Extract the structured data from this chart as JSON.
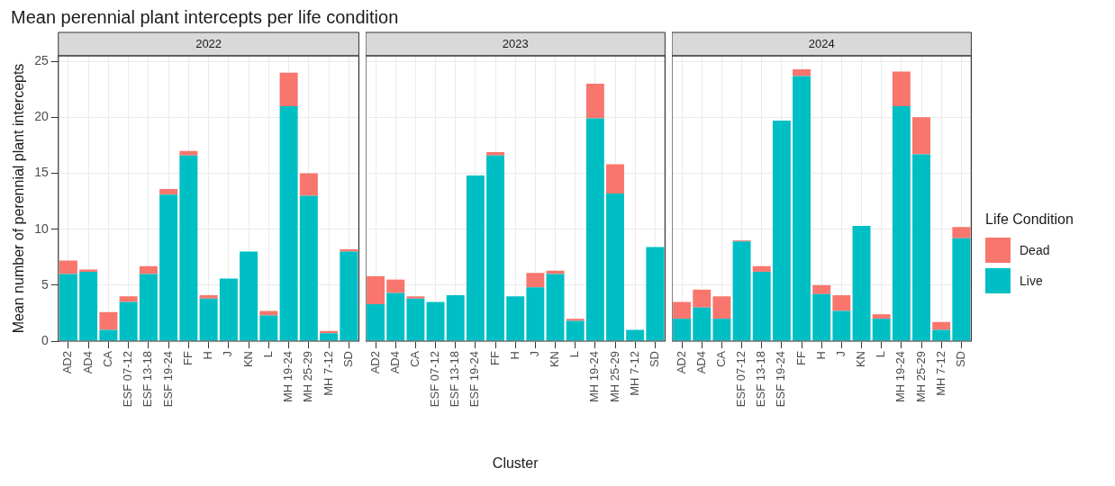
{
  "chart_data": [
    {
      "type": "bar",
      "title": "Mean perennial plant intercepts per life condition",
      "subtitle": "2022",
      "ylabel": "Mean number of perennial plant intercepts",
      "stacked": true,
      "grid": true,
      "categories": [
        "AD2",
        "AD4",
        "CA",
        "ESF 07-12",
        "ESF 13-18",
        "ESF 19-24",
        "FF",
        "H",
        "J",
        "KN",
        "L",
        "MH 19-24",
        "MH 25-29",
        "MH 7-12",
        "SD"
      ],
      "series": [
        {
          "color": "#00bfc4",
          "values": [
            6.0,
            6.2,
            1.0,
            3.5,
            6.0,
            13.1,
            16.6,
            3.8,
            5.6,
            8.0,
            2.3,
            21.0,
            13.0,
            0.7,
            8.0
          ]
        },
        {
          "color": "#f8766d",
          "values": [
            1.2,
            0.2,
            1.6,
            0.5,
            0.7,
            0.5,
            0.4,
            0.3,
            0,
            0,
            0.4,
            3.0,
            2.0,
            0.2,
            0.2
          ]
        }
      ],
      "ylim": [
        0,
        25.5
      ],
      "yticks": [
        0,
        5,
        10,
        15,
        20,
        25
      ]
    },
    {
      "type": "bar",
      "subtitle": "2023",
      "xlabel": "Cluster",
      "stacked": true,
      "grid": true,
      "tick_labels": "x",
      "categories": [
        "AD2",
        "AD4",
        "CA",
        "ESF 07-12",
        "ESF 13-18",
        "ESF 19-24",
        "FF",
        "H",
        "J",
        "KN",
        "L",
        "MH 19-24",
        "MH 25-29",
        "MH 7-12",
        "SD"
      ],
      "series": [
        {
          "color": "#00bfc4",
          "values": [
            3.3,
            4.3,
            3.8,
            3.5,
            4.1,
            14.8,
            16.6,
            4.0,
            4.8,
            6.0,
            1.8,
            19.9,
            13.2,
            1.0,
            8.4
          ]
        },
        {
          "color": "#f8766d",
          "values": [
            2.5,
            1.2,
            0.2,
            0,
            0,
            0,
            0.3,
            0,
            1.3,
            0.3,
            0.2,
            3.1,
            2.6,
            0,
            0
          ]
        }
      ],
      "ylim": [
        0,
        25.5
      ],
      "yticks": [
        0,
        5,
        10,
        15,
        20,
        25
      ]
    },
    {
      "type": "bar",
      "subtitle": "2024",
      "stacked": true,
      "grid": true,
      "tick_labels": "x",
      "legend": "right",
      "legend_title": "Life Condition",
      "categories": [
        "AD2",
        "AD4",
        "CA",
        "ESF 07-12",
        "ESF 13-18",
        "ESF 19-24",
        "FF",
        "H",
        "J",
        "KN",
        "L",
        "MH 19-24",
        "MH 25-29",
        "MH 7-12",
        "SD"
      ],
      "series": [
        {
          "name": "Live",
          "color": "#00bfc4",
          "values": [
            2.0,
            3.0,
            2.0,
            8.9,
            6.2,
            19.7,
            23.7,
            4.2,
            2.7,
            10.3,
            2.0,
            21.0,
            16.7,
            1.0,
            9.2
          ]
        },
        {
          "name": "Dead",
          "color": "#f8766d",
          "values": [
            1.5,
            1.6,
            2.0,
            0.1,
            0.5,
            0,
            0.6,
            0.8,
            1.4,
            0,
            0.4,
            3.1,
            3.3,
            0.7,
            1.0
          ]
        }
      ],
      "ylim": [
        0,
        25.5
      ],
      "yticks": [
        0,
        5,
        10,
        15,
        20,
        25
      ]
    }
  ]
}
